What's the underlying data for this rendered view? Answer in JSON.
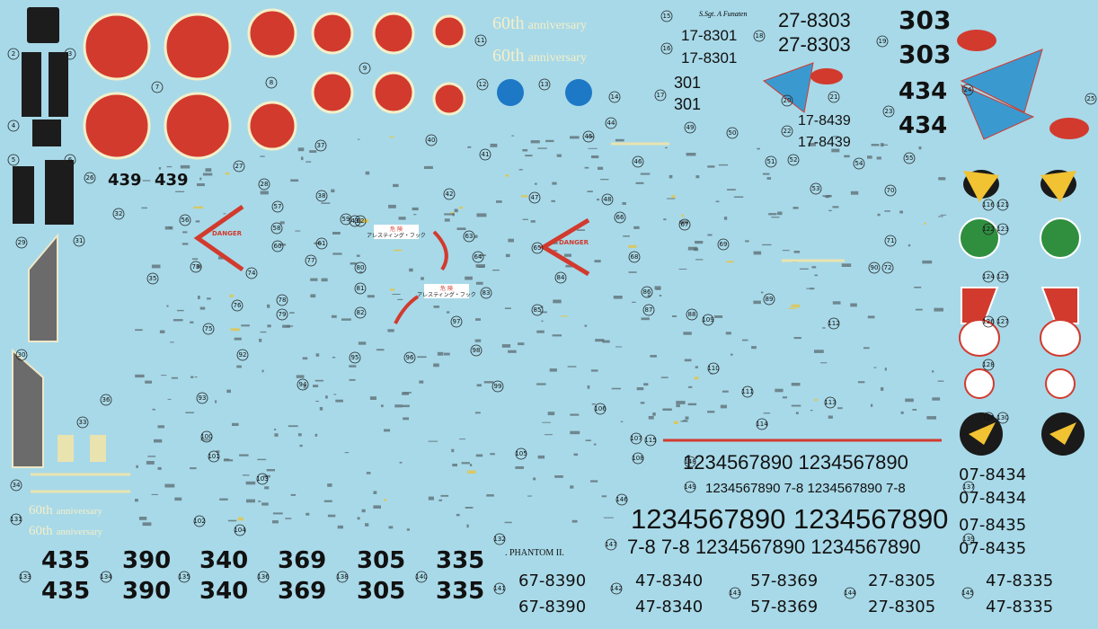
{
  "anniversary": [
    {
      "ordinal": "60th",
      "word": "anniversary"
    },
    {
      "ordinal": "60th",
      "word": "anniversary"
    },
    {
      "ordinal": "60th",
      "word": "anniversary"
    },
    {
      "ordinal": "60th",
      "word": "anniversary"
    }
  ],
  "pilot_name": "S.Sgt. A Funaten",
  "serials_top": [
    "17-8301",
    "17-8301",
    "27-8303",
    "27-8303",
    "301",
    "301",
    "17-8439",
    "17-8439"
  ],
  "tail_numbers_top": [
    "303",
    "303",
    "434",
    "434"
  ],
  "codes_small": [
    "439",
    "439"
  ],
  "warnings": [
    "DANGER",
    "DANGER"
  ],
  "hook_warnings": [
    {
      "title": "危 険",
      "text": "アレスティング・フック"
    },
    {
      "title": "危 険",
      "text": "アレスティング・フック"
    }
  ],
  "digit_strips": [
    "1234567890 1234567890",
    "1234567890 7-8 1234567890 7-8",
    "1234567890 1234567890",
    "7-8 7-8 1234567890 1234567890"
  ],
  "type_name": ". PHANTOM II.",
  "tail_numbers_bottom": [
    "435",
    "435",
    "390",
    "390",
    "340",
    "340",
    "369",
    "369",
    "305",
    "305",
    "335",
    "335"
  ],
  "serials_bottom": [
    "67-8390",
    "67-8390",
    "47-8340",
    "47-8340",
    "57-8369",
    "57-8369",
    "27-8305",
    "27-8305",
    "47-8335",
    "47-8335"
  ],
  "serials_right": [
    "07-8434",
    "07-8434",
    "07-8435",
    "07-8435"
  ],
  "markers": [
    "2",
    "3",
    "4",
    "5",
    "6",
    "7",
    "8",
    "9",
    "11",
    "12",
    "13",
    "14",
    "15",
    "16",
    "17",
    "18",
    "19",
    "20",
    "21",
    "22",
    "23",
    "24",
    "25",
    "26",
    "27",
    "28",
    "29",
    "30",
    "31",
    "32",
    "33",
    "34",
    "35",
    "36",
    "37",
    "38",
    "40",
    "41",
    "42",
    "43",
    "44",
    "45",
    "46",
    "47",
    "48",
    "49",
    "50",
    "51",
    "52",
    "53",
    "54",
    "55",
    "56",
    "57",
    "58",
    "59",
    "60",
    "61",
    "62",
    "63",
    "64",
    "65",
    "66",
    "67",
    "68",
    "69",
    "70",
    "71",
    "72",
    "73",
    "74",
    "75",
    "76",
    "77",
    "78",
    "79",
    "80",
    "81",
    "82",
    "83",
    "84",
    "85",
    "86",
    "87",
    "88",
    "89",
    "90",
    "92",
    "93",
    "94",
    "95",
    "96",
    "97",
    "98",
    "99",
    "100",
    "101",
    "102",
    "103",
    "104",
    "105",
    "106",
    "107",
    "108",
    "109",
    "110",
    "111",
    "112",
    "113",
    "114",
    "115",
    "116",
    "121",
    "122",
    "123",
    "124",
    "125",
    "126",
    "127",
    "128",
    "129",
    "130",
    "131",
    "132",
    "133",
    "134",
    "135",
    "136",
    "137",
    "138",
    "139",
    "140",
    "141",
    "142",
    "143",
    "144",
    "145",
    "146",
    "147",
    "148",
    "149",
    "150"
  ]
}
